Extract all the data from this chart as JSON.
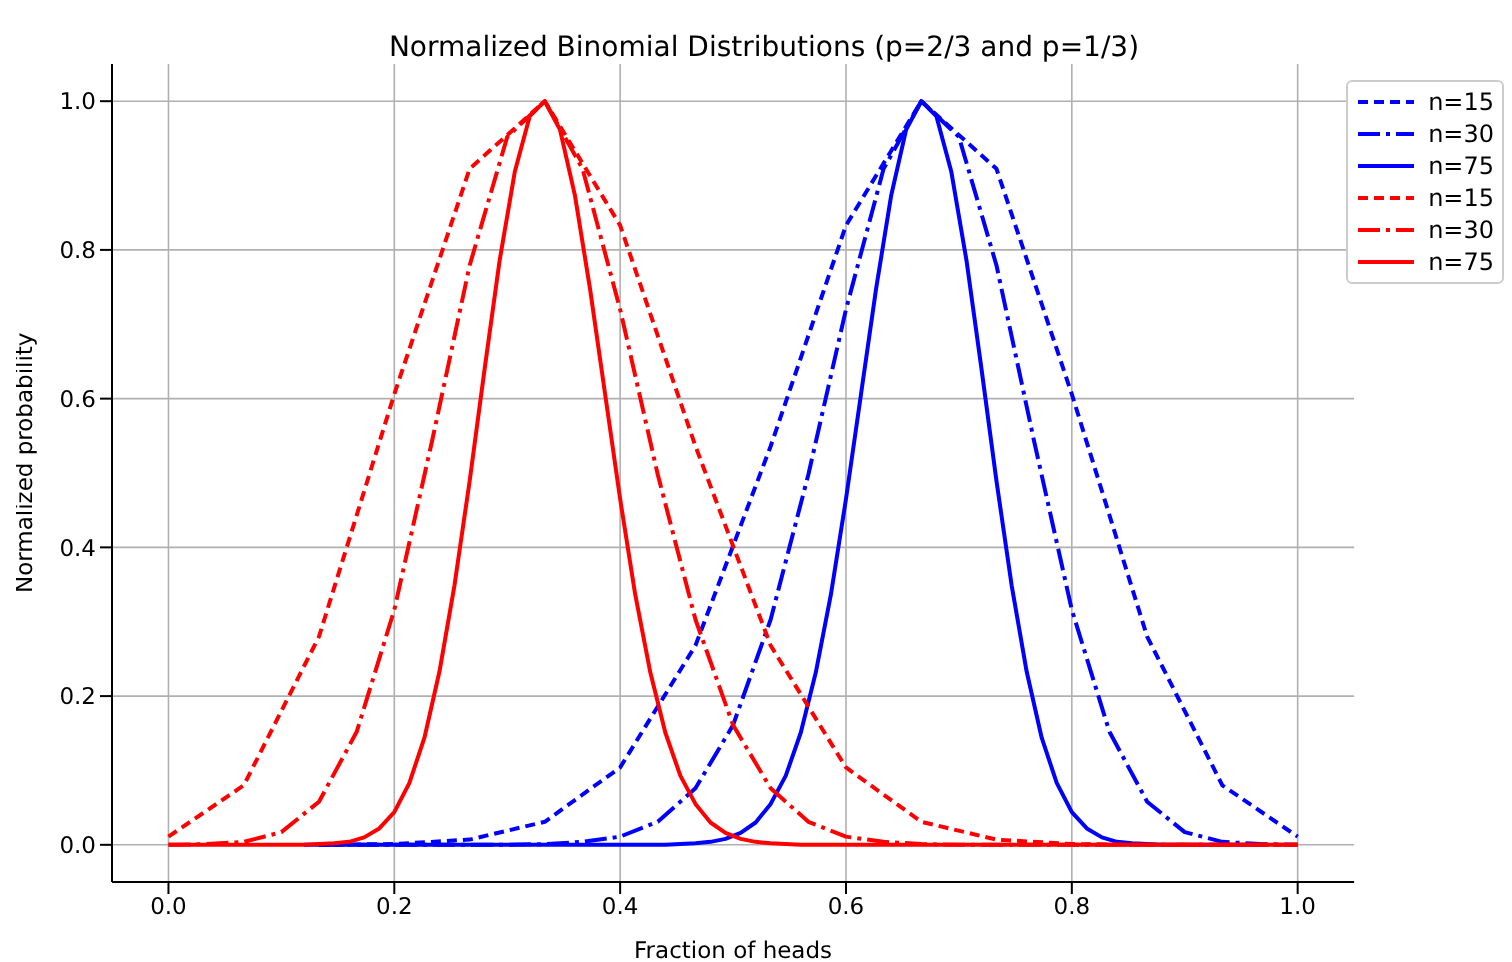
{
  "chart_data": {
    "type": "line",
    "title": "Normalized Binomial Distributions (p=2/3 and p=1/3)",
    "xlabel": "Fraction of heads",
    "ylabel": "Normalized probability",
    "xlim": [
      -0.05,
      1.05
    ],
    "ylim": [
      -0.05,
      1.05
    ],
    "xticks": [
      {
        "value": 0,
        "label": "0.0"
      },
      {
        "value": 0.2,
        "label": "0.2"
      },
      {
        "value": 0.4,
        "label": "0.4"
      },
      {
        "value": 0.6,
        "label": "0.6"
      },
      {
        "value": 0.8,
        "label": "0.8"
      },
      {
        "value": 1,
        "label": "1.0"
      }
    ],
    "yticks": [
      {
        "value": 0,
        "label": "0.0"
      },
      {
        "value": 0.2,
        "label": "0.2"
      },
      {
        "value": 0.4,
        "label": "0.4"
      },
      {
        "value": 0.6,
        "label": "0.6"
      },
      {
        "value": 0.8,
        "label": "0.8"
      },
      {
        "value": 1,
        "label": "1.0"
      }
    ],
    "grid": true,
    "legend": "top right",
    "marker": "none",
    "series": [
      {
        "name": "n=15",
        "color": "#0000ff",
        "line_style": "dashed",
        "x": [
          0.1333,
          0.2,
          0.2667,
          0.3333,
          0.4,
          0.4667,
          0.5333,
          0.6,
          0.6667,
          0.7333,
          0.8,
          0.8667,
          0.9333,
          1
        ],
        "values": [
          0,
          0.001,
          0.007,
          0.031,
          0.104,
          0.268,
          0.536,
          0.833,
          1,
          0.909,
          0.606,
          0.28,
          0.08,
          0.011
        ]
      },
      {
        "name": "n=30",
        "color": "#0000ff",
        "line_style": "dashdot",
        "x": [
          0.1333,
          0.1667,
          0.2,
          0.2333,
          0.2667,
          0.3,
          0.3333,
          0.3667,
          0.4,
          0.4333,
          0.4667,
          0.5,
          0.5333,
          0.5667,
          0.6,
          0.6333,
          0.6667,
          0.7,
          0.7333,
          0.7667,
          0.8,
          0.8333,
          0.8667,
          0.9,
          0.9333,
          0.9667,
          1
        ],
        "values": [
          0,
          0,
          0,
          0,
          0,
          0,
          0.001,
          0.004,
          0.011,
          0.031,
          0.076,
          0.161,
          0.303,
          0.498,
          0.72,
          0.909,
          1,
          0.952,
          0.779,
          0.542,
          0.316,
          0.152,
          0.058,
          0.017,
          0.004,
          0.001,
          0
        ]
      },
      {
        "name": "n=75",
        "color": "#0000ff",
        "line_style": "solid",
        "x": [
          0.12,
          0.1333,
          0.1467,
          0.16,
          0.1733,
          0.1867,
          0.2,
          0.2133,
          0.2267,
          0.24,
          0.2533,
          0.2667,
          0.28,
          0.2933,
          0.3067,
          0.32,
          0.3333,
          0.3467,
          0.36,
          0.3733,
          0.3867,
          0.4,
          0.4133,
          0.4267,
          0.44,
          0.4533,
          0.4667,
          0.48,
          0.4933,
          0.5067,
          0.52,
          0.5333,
          0.5467,
          0.56,
          0.5733,
          0.5867,
          0.6,
          0.6133,
          0.6267,
          0.64,
          0.6533,
          0.6667,
          0.68,
          0.6933,
          0.7067,
          0.72,
          0.7333,
          0.7467,
          0.76,
          0.7733,
          0.7867,
          0.8,
          0.8133,
          0.8267,
          0.84,
          0.8533,
          0.8667,
          0.88,
          0.8933,
          0.9067,
          0.92,
          0.9333,
          0.9467,
          0.96,
          0.9733
        ],
        "values": [
          0,
          0,
          0,
          0,
          0,
          0,
          0,
          0,
          0,
          0,
          0,
          0,
          0,
          0,
          0,
          0,
          0,
          0,
          0,
          0,
          0,
          0,
          0,
          0,
          0,
          0.001,
          0.002,
          0.004,
          0.008,
          0.016,
          0.03,
          0.055,
          0.093,
          0.151,
          0.232,
          0.337,
          0.465,
          0.606,
          0.748,
          0.873,
          0.962,
          1,
          0.98,
          0.905,
          0.786,
          0.64,
          0.489,
          0.349,
          0.233,
          0.144,
          0.083,
          0.044,
          0.022,
          0.01,
          0.004,
          0.002,
          0.001,
          0,
          0,
          0,
          0,
          0,
          0,
          0,
          0
        ]
      },
      {
        "name": "n=15",
        "color": "#ff0000",
        "line_style": "dashed",
        "x": [
          0,
          0.0667,
          0.1333,
          0.2,
          0.2667,
          0.3333,
          0.4,
          0.4667,
          0.5333,
          0.6,
          0.6667,
          0.7333,
          0.8,
          0.8667,
          0.9333,
          1
        ],
        "values": [
          0.011,
          0.08,
          0.28,
          0.606,
          0.909,
          1,
          0.833,
          0.536,
          0.268,
          0.104,
          0.031,
          0.007,
          0.001,
          0,
          0,
          0
        ]
      },
      {
        "name": "n=30",
        "color": "#ff0000",
        "line_style": "dashdot",
        "x": [
          0,
          0.0333,
          0.0667,
          0.1,
          0.1333,
          0.1667,
          0.2,
          0.2333,
          0.2667,
          0.3,
          0.3333,
          0.3667,
          0.4,
          0.4333,
          0.4667,
          0.5,
          0.5333,
          0.5667,
          0.6,
          0.6333,
          0.6667,
          0.7,
          0.7333,
          0.7667,
          0.8,
          0.8333,
          0.8667,
          0.9,
          0.9333,
          0.9667,
          1
        ],
        "values": [
          0,
          0.001,
          0.004,
          0.017,
          0.058,
          0.152,
          0.316,
          0.542,
          0.779,
          0.952,
          1,
          0.909,
          0.72,
          0.498,
          0.303,
          0.161,
          0.076,
          0.031,
          0.011,
          0.004,
          0.001,
          0,
          0,
          0,
          0,
          0,
          0,
          0,
          0,
          0,
          0
        ]
      },
      {
        "name": "n=75",
        "color": "#ff0000",
        "line_style": "solid",
        "x": [
          0,
          0.0133,
          0.0267,
          0.04,
          0.0533,
          0.0667,
          0.08,
          0.0933,
          0.1067,
          0.12,
          0.1333,
          0.1467,
          0.16,
          0.1733,
          0.1867,
          0.2,
          0.2133,
          0.2267,
          0.24,
          0.2533,
          0.2667,
          0.28,
          0.2933,
          0.3067,
          0.32,
          0.3333,
          0.3467,
          0.36,
          0.3733,
          0.3867,
          0.4,
          0.4133,
          0.4267,
          0.44,
          0.4533,
          0.4667,
          0.48,
          0.4933,
          0.5067,
          0.52,
          0.5333,
          0.5467,
          0.56,
          0.5733,
          0.5867,
          0.6,
          0.6133,
          0.6267,
          0.64,
          0.6533,
          0.6667,
          0.68,
          0.6933,
          0.7067,
          0.72,
          0.7333,
          0.7467,
          0.76,
          0.7733,
          0.7867,
          0.8,
          0.8133,
          0.8267,
          0.84,
          0.8533,
          0.8667,
          0.88,
          0.8933,
          0.9067,
          0.92,
          0.9333,
          0.9467,
          0.96,
          0.9733,
          0.9867,
          1
        ],
        "values": [
          0,
          0,
          0,
          0,
          0,
          0,
          0,
          0,
          0,
          0,
          0.001,
          0.002,
          0.004,
          0.01,
          0.022,
          0.044,
          0.083,
          0.144,
          0.233,
          0.349,
          0.489,
          0.64,
          0.786,
          0.905,
          0.98,
          1,
          0.962,
          0.873,
          0.748,
          0.606,
          0.465,
          0.337,
          0.232,
          0.151,
          0.093,
          0.055,
          0.03,
          0.016,
          0.008,
          0.004,
          0.002,
          0.001,
          0,
          0,
          0,
          0,
          0,
          0,
          0,
          0,
          0,
          0,
          0,
          0,
          0,
          0,
          0,
          0,
          0,
          0,
          0,
          0,
          0,
          0,
          0,
          0,
          0,
          0,
          0,
          0,
          0,
          0,
          0,
          0,
          0,
          0
        ]
      }
    ]
  }
}
